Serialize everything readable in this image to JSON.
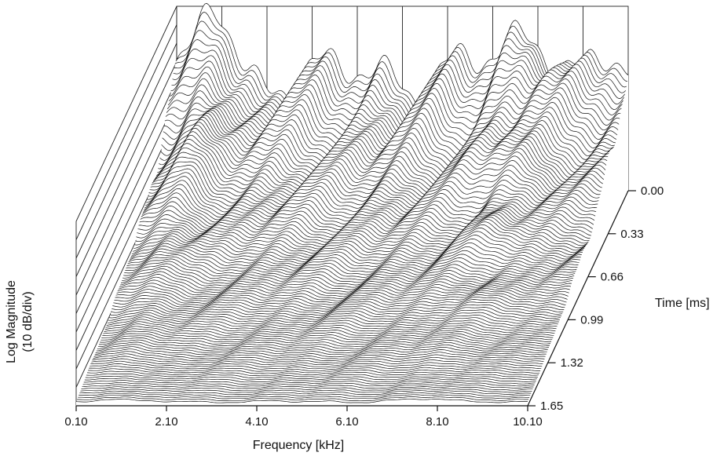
{
  "chart_data": {
    "type": "waterfall-3d",
    "xlabel": "Frequency [kHz]",
    "ylabel_line1": "Log Magnitude",
    "ylabel_line2": "(10 dB/div)",
    "zlabel": "Time [ms]",
    "x_ticks": [
      "0.10",
      "2.10",
      "4.10",
      "6.10",
      "8.10",
      "10.10"
    ],
    "z_ticks": [
      "0.00",
      "0.33",
      "0.66",
      "0.99",
      "1.32",
      "1.65"
    ],
    "xlim": [
      0.1,
      10.1
    ],
    "zlim": [
      0.0,
      1.65
    ],
    "y_divisions": 10,
    "grid": true
  },
  "colors": {
    "ink": "#111111",
    "background": "#ffffff"
  }
}
